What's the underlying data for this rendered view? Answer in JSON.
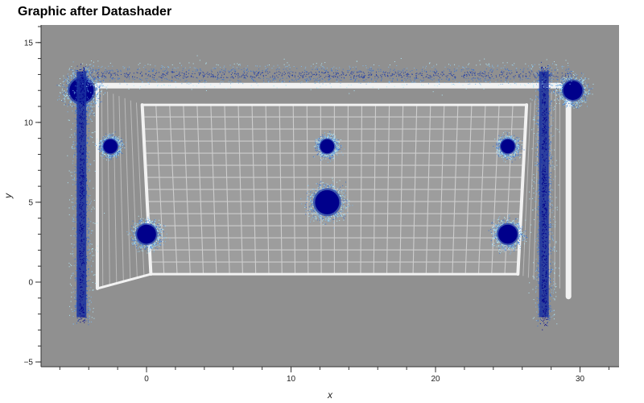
{
  "chart_data": {
    "type": "scatter",
    "title": "Graphic after Datashader",
    "xlabel": "x",
    "ylabel": "y",
    "xlim": [
      -7.3,
      32.7
    ],
    "ylim": [
      -5.3,
      16.1
    ],
    "x_ticks": [
      0,
      10,
      20,
      30
    ],
    "y_ticks": [
      -5,
      0,
      5,
      10,
      15
    ],
    "x_tick_labels": [
      "0",
      "10",
      "20",
      "30"
    ],
    "y_tick_labels": [
      "−5",
      "0",
      "5",
      "10",
      "15"
    ],
    "x_minor_step": 2,
    "y_minor_step": 1,
    "grid": false,
    "background_color": "#909090",
    "point_color_dense": "#00008b",
    "point_color_sparse": "#b0e8f8",
    "clusters": [
      {
        "x": -4.5,
        "y": 12.0,
        "size": "large"
      },
      {
        "x": -2.5,
        "y": 8.5,
        "size": "small"
      },
      {
        "x": 0.0,
        "y": 3.0,
        "size": "medium"
      },
      {
        "x": 12.5,
        "y": 8.5,
        "size": "small"
      },
      {
        "x": 12.5,
        "y": 5.0,
        "size": "large"
      },
      {
        "x": 25.0,
        "y": 8.5,
        "size": "small"
      },
      {
        "x": 25.0,
        "y": 3.0,
        "size": "medium"
      },
      {
        "x": 29.5,
        "y": 12.0,
        "size": "medium"
      }
    ],
    "bands": [
      {
        "orientation": "vertical",
        "x": -4.5,
        "y_range": [
          -2.5,
          13.5
        ]
      },
      {
        "orientation": "vertical",
        "x": 27.5,
        "y_range": [
          -2.5,
          13.5
        ]
      },
      {
        "orientation": "horizontal",
        "y": 13.0,
        "x_range": [
          -4.5,
          29.5
        ]
      }
    ],
    "background_image": "soccer-goal-net"
  }
}
